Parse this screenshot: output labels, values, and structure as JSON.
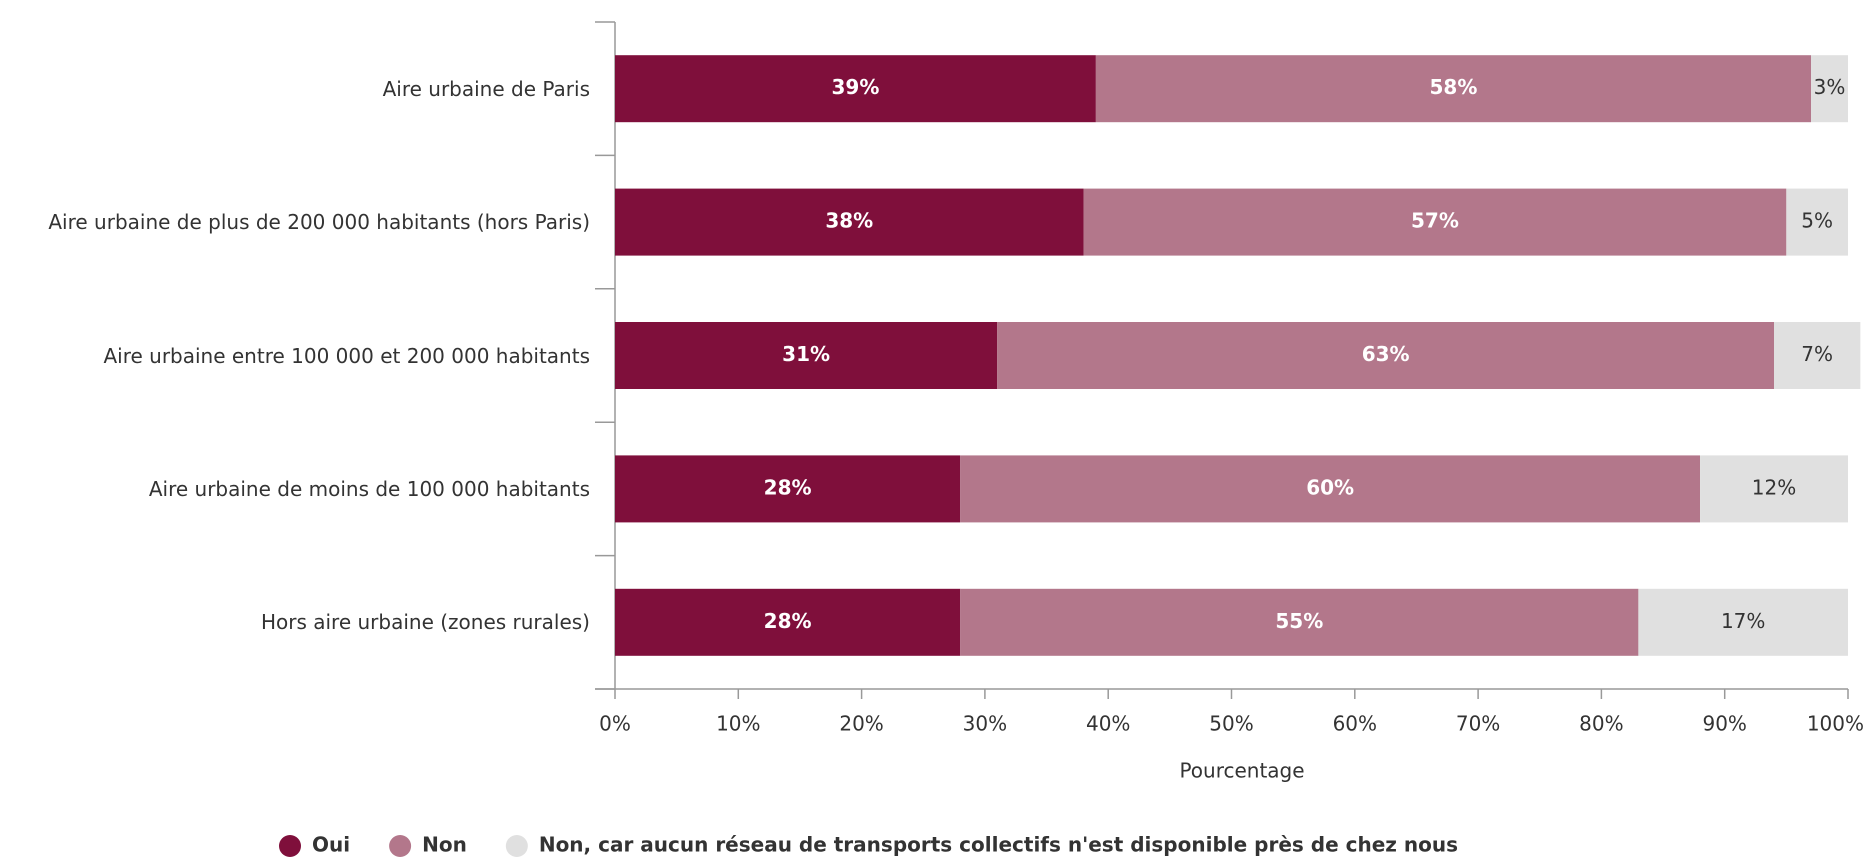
{
  "chart_data": {
    "type": "stacked_barh",
    "categories": [
      "Aire urbaine de Paris",
      "Aire urbaine de plus de 200 000 habitants (hors Paris)",
      "Aire urbaine entre 100 000 et 200 000 habitants",
      "Aire urbaine de moins de 100 000 habitants",
      "Hors aire urbaine (zones rurales)"
    ],
    "series": [
      {
        "name": "Oui",
        "color": "#7f0f3b",
        "values": [
          39,
          38,
          31,
          28,
          28
        ],
        "value_labels": [
          "39%",
          "38%",
          "31%",
          "28%",
          "28%"
        ]
      },
      {
        "name": "Non",
        "color": "#b3778b",
        "values": [
          58,
          57,
          63,
          60,
          55
        ],
        "value_labels": [
          "58%",
          "57%",
          "63%",
          "60%",
          "55%"
        ]
      },
      {
        "name": "Non, car aucun réseau de transports collectifs n'est disponible près de chez nous",
        "color": "#e0e0e0",
        "values": [
          3,
          5,
          7,
          12,
          17
        ],
        "value_labels": [
          "3%",
          "5%",
          "7%",
          "12%",
          "17%"
        ]
      }
    ],
    "xlabel": "Pourcentage",
    "xlim": [
      0,
      100
    ],
    "xticks": [
      {
        "value": 0,
        "label": "0%"
      },
      {
        "value": 10,
        "label": "10%"
      },
      {
        "value": 20,
        "label": "20%"
      },
      {
        "value": 30,
        "label": "30%"
      },
      {
        "value": 40,
        "label": "40%"
      },
      {
        "value": 50,
        "label": "50%"
      },
      {
        "value": 60,
        "label": "60%"
      },
      {
        "value": 70,
        "label": "70%"
      },
      {
        "value": 80,
        "label": "80%"
      },
      {
        "value": 90,
        "label": "90%"
      },
      {
        "value": 100,
        "label": "100%"
      }
    ],
    "legend": "bottom"
  }
}
